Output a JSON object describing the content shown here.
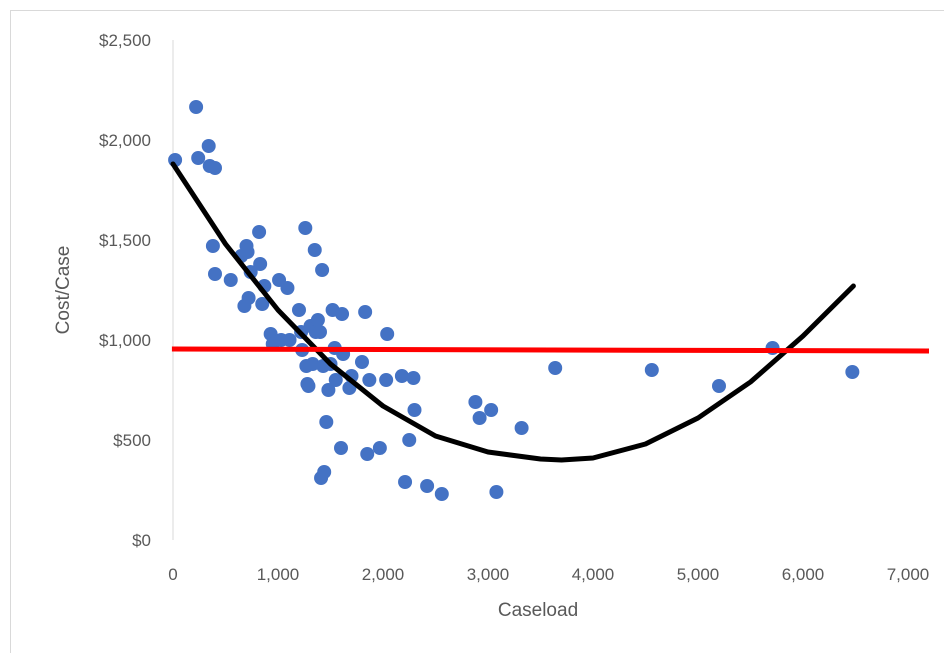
{
  "chart_data": {
    "type": "scatter",
    "title": "",
    "xlabel": "Caseload",
    "ylabel": "Cost/Case",
    "xlim": [
      0,
      7000
    ],
    "ylim": [
      0,
      2500
    ],
    "x_ticks": [
      0,
      1000,
      2000,
      3000,
      4000,
      5000,
      6000,
      7000
    ],
    "x_tick_labels": [
      "0",
      "1,000",
      "2,000",
      "3,000",
      "4,000",
      "5,000",
      "6,000",
      "7,000"
    ],
    "y_ticks": [
      0,
      500,
      1000,
      1500,
      2000,
      2500
    ],
    "y_tick_labels": [
      "$0",
      "$500",
      "$1,000",
      "$1,500",
      "$2,000",
      "$2,500"
    ],
    "grid": false,
    "legend": "none",
    "series": [
      {
        "kind": "points",
        "color": "#4472C4",
        "points": [
          [
            20,
            1900
          ],
          [
            220,
            2165
          ],
          [
            240,
            1910
          ],
          [
            340,
            1970
          ],
          [
            350,
            1870
          ],
          [
            400,
            1860
          ],
          [
            380,
            1470
          ],
          [
            400,
            1330
          ],
          [
            550,
            1300
          ],
          [
            650,
            1420
          ],
          [
            680,
            1170
          ],
          [
            700,
            1470
          ],
          [
            710,
            1440
          ],
          [
            720,
            1210
          ],
          [
            740,
            1340
          ],
          [
            820,
            1540
          ],
          [
            830,
            1380
          ],
          [
            850,
            1180
          ],
          [
            870,
            1270
          ],
          [
            930,
            1030
          ],
          [
            950,
            980
          ],
          [
            1010,
            1300
          ],
          [
            1030,
            1000
          ],
          [
            1090,
            1260
          ],
          [
            1110,
            1000
          ],
          [
            1200,
            1150
          ],
          [
            1220,
            1040
          ],
          [
            1230,
            950
          ],
          [
            1260,
            1560
          ],
          [
            1270,
            870
          ],
          [
            1280,
            780
          ],
          [
            1290,
            770
          ],
          [
            1310,
            1070
          ],
          [
            1330,
            880
          ],
          [
            1350,
            1450
          ],
          [
            1360,
            1040
          ],
          [
            1380,
            1100
          ],
          [
            1400,
            1040
          ],
          [
            1410,
            310
          ],
          [
            1420,
            1350
          ],
          [
            1430,
            870
          ],
          [
            1440,
            340
          ],
          [
            1460,
            590
          ],
          [
            1480,
            750
          ],
          [
            1500,
            880
          ],
          [
            1520,
            1150
          ],
          [
            1540,
            960
          ],
          [
            1550,
            800
          ],
          [
            1600,
            460
          ],
          [
            1610,
            1130
          ],
          [
            1620,
            930
          ],
          [
            1680,
            760
          ],
          [
            1700,
            820
          ],
          [
            1800,
            890
          ],
          [
            1830,
            1140
          ],
          [
            1850,
            430
          ],
          [
            1870,
            800
          ],
          [
            1970,
            460
          ],
          [
            2030,
            800
          ],
          [
            2040,
            1030
          ],
          [
            2180,
            820
          ],
          [
            2210,
            290
          ],
          [
            2250,
            500
          ],
          [
            2290,
            810
          ],
          [
            2300,
            650
          ],
          [
            2420,
            270
          ],
          [
            2560,
            230
          ],
          [
            2880,
            690
          ],
          [
            2920,
            610
          ],
          [
            3030,
            650
          ],
          [
            3080,
            240
          ],
          [
            3320,
            560
          ],
          [
            3640,
            860
          ],
          [
            4560,
            850
          ],
          [
            5200,
            770
          ],
          [
            5710,
            960
          ],
          [
            6470,
            840
          ]
        ]
      },
      {
        "kind": "fit-line",
        "color": "#000000",
        "points": [
          [
            0,
            1880
          ],
          [
            500,
            1480
          ],
          [
            1000,
            1150
          ],
          [
            1500,
            880
          ],
          [
            2000,
            670
          ],
          [
            2500,
            520
          ],
          [
            3000,
            440
          ],
          [
            3500,
            405
          ],
          [
            3700,
            400
          ],
          [
            4000,
            410
          ],
          [
            4500,
            480
          ],
          [
            5000,
            610
          ],
          [
            5500,
            790
          ],
          [
            6000,
            1020
          ],
          [
            6480,
            1270
          ]
        ]
      },
      {
        "kind": "reference-line",
        "color": "#FF0000",
        "points": [
          [
            -10,
            955
          ],
          [
            7200,
            945
          ]
        ]
      }
    ]
  }
}
